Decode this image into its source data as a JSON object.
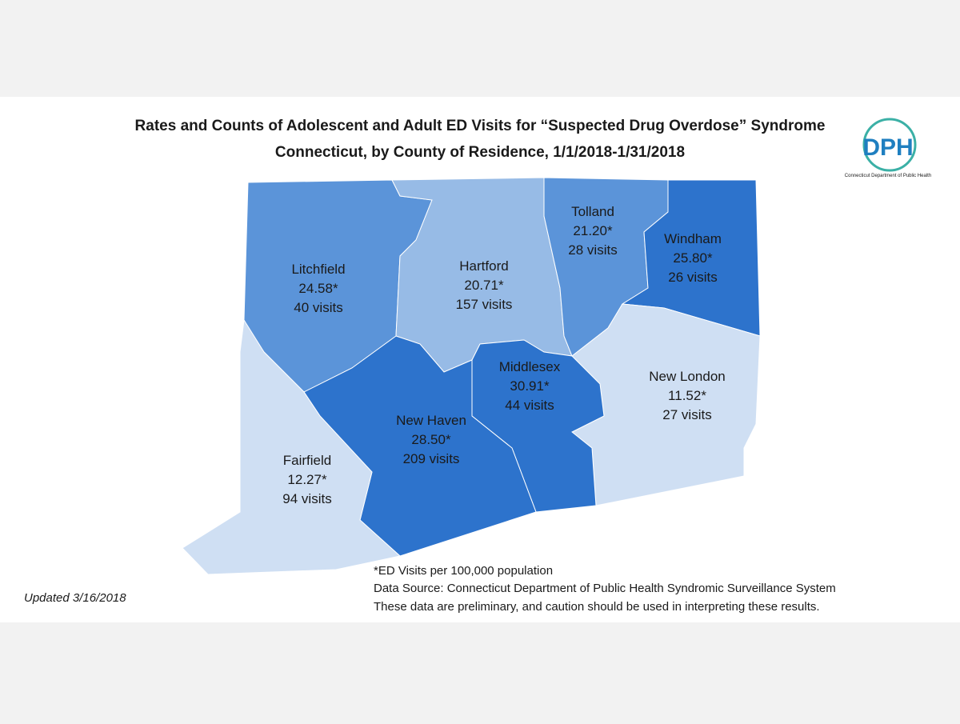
{
  "header": {
    "title_lines": [
      "Rates and Counts of Adolescent and Adult ED Visits for “Suspected Drug Overdose” Syndrome",
      "Connecticut, by County of Residence, 1/1/2018-1/31/2018"
    ]
  },
  "logo": {
    "text": "DPH",
    "caption": "Connecticut Department of Public Health"
  },
  "counties": [
    {
      "name": "Litchfield",
      "rate": "24.58*",
      "visits": "40 visits",
      "color": "#5b94d9"
    },
    {
      "name": "Hartford",
      "rate": "20.71*",
      "visits": "157 visits",
      "color": "#97bbe6"
    },
    {
      "name": "Tolland",
      "rate": "21.20*",
      "visits": "28 visits",
      "color": "#5b94d9"
    },
    {
      "name": "Windham",
      "rate": "25.80*",
      "visits": "26 visits",
      "color": "#2d73cc"
    },
    {
      "name": "New London",
      "rate": "11.52*",
      "visits": "27 visits",
      "color": "#cfdff3"
    },
    {
      "name": "Middlesex",
      "rate": "30.91*",
      "visits": "44 visits",
      "color": "#2d73cc"
    },
    {
      "name": "New Haven",
      "rate": "28.50*",
      "visits": "209 visits",
      "color": "#2d73cc"
    },
    {
      "name": "Fairfield",
      "rate": "12.27*",
      "visits": "94 visits",
      "color": "#cfdff3"
    }
  ],
  "notes": [
    "*ED Visits per 100,000 population",
    "Data Source:  Connecticut Department of Public Health Syndromic Surveillance System",
    "These data are preliminary, and caution should be used in interpreting these results."
  ],
  "updated": "Updated 3/16/2018"
}
